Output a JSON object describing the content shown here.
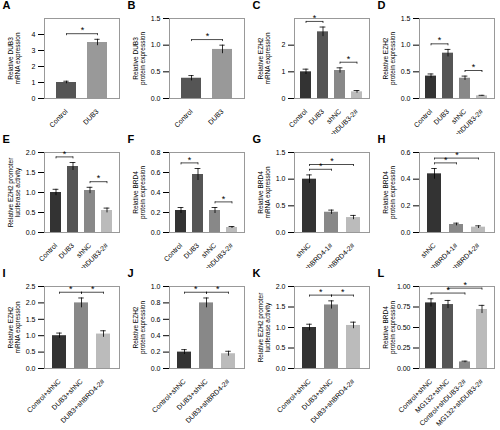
{
  "chart_data": [
    {
      "type": "bar",
      "title": "A",
      "ylabel": "Relative DUB3\nmRNA expression",
      "categories": [
        "Control",
        "DUB3"
      ],
      "values": [
        1.0,
        3.5
      ],
      "errors": [
        0.08,
        0.2
      ],
      "colors": [
        "#555555",
        "#999999"
      ],
      "ylim": [
        0,
        5
      ],
      "yticks": [
        0,
        1,
        2,
        3,
        4
      ],
      "annotations": [
        {
          "text": "*",
          "categories": [
            "Control",
            "DUB3"
          ]
        }
      ]
    },
    {
      "type": "bar",
      "title": "B",
      "ylabel": "Relative DUB3\nprotein expression",
      "categories": [
        "Control",
        "DUB3"
      ],
      "values": [
        0.38,
        0.92
      ],
      "errors": [
        0.05,
        0.08
      ],
      "colors": [
        "#555555",
        "#999999"
      ],
      "ylim": [
        0,
        1.5
      ],
      "yticks": [
        {
          "value": 0.0,
          "label": "0.0"
        },
        {
          "value": 0.5,
          "label": "0.5"
        },
        {
          "value": 1.0,
          "label": "1.0"
        },
        {
          "value": 1.5,
          "label": "1.5"
        }
      ],
      "annotations": [
        {
          "text": "*",
          "categories": [
            "Control",
            "DUB3"
          ]
        }
      ]
    },
    {
      "type": "bar",
      "title": "C",
      "ylabel": "Relative EZH2\nmRNA expression",
      "categories": [
        "Control",
        "DUB3",
        "shNC",
        "shDUB3-2#"
      ],
      "values": [
        1.0,
        2.5,
        1.05,
        0.25
      ],
      "errors": [
        0.1,
        0.18,
        0.1,
        0.05
      ],
      "colors": [
        "#333333",
        "#555555",
        "#888888",
        "#bbbbbb"
      ],
      "ylim": [
        0,
        3
      ],
      "yticks": [
        0,
        1,
        2
      ],
      "annotations": [
        {
          "text": "*",
          "categories": [
            "Control",
            "DUB3"
          ]
        },
        {
          "text": "*",
          "categories": [
            "shNC",
            "shDUB3-2#"
          ]
        }
      ]
    },
    {
      "type": "bar",
      "title": "D",
      "ylabel": "Relative EZH2\nprotein expression",
      "categories": [
        "Control",
        "DUB3",
        "shNC",
        "shDUB3-2#"
      ],
      "values": [
        0.42,
        0.85,
        0.38,
        0.05
      ],
      "errors": [
        0.04,
        0.07,
        0.04,
        0.01
      ],
      "colors": [
        "#333333",
        "#555555",
        "#888888",
        "#bbbbbb"
      ],
      "ylim": [
        0,
        1.5
      ],
      "yticks": [
        {
          "value": 0.0,
          "label": "0.0"
        },
        {
          "value": 0.5,
          "label": "0.5"
        },
        {
          "value": 1.0,
          "label": "1.0"
        },
        {
          "value": 1.5,
          "label": "1.5"
        }
      ],
      "annotations": [
        {
          "text": "*",
          "categories": [
            "Control",
            "DUB3"
          ]
        },
        {
          "text": "*",
          "categories": [
            "shNC",
            "shDUB3-2#"
          ]
        }
      ]
    },
    {
      "type": "bar",
      "title": "E",
      "ylabel": "Relative EZH2 promoter\nluciferase activity",
      "categories": [
        "Control",
        "DUB3",
        "shNC",
        "shDUB3-2#"
      ],
      "values": [
        1.0,
        1.65,
        1.05,
        0.55
      ],
      "errors": [
        0.08,
        0.1,
        0.08,
        0.06
      ],
      "colors": [
        "#333333",
        "#555555",
        "#888888",
        "#bbbbbb"
      ],
      "ylim": [
        0,
        2.0
      ],
      "yticks": [
        {
          "value": 0.0,
          "label": "0.0"
        },
        {
          "value": 0.5,
          "label": "0.5"
        },
        {
          "value": 1.0,
          "label": "1.0"
        },
        {
          "value": 1.5,
          "label": "1.5"
        },
        {
          "value": 2.0,
          "label": "2.0"
        }
      ],
      "annotations": [
        {
          "text": "*",
          "categories": [
            "Control",
            "DUB3"
          ]
        },
        {
          "text": "*",
          "categories": [
            "shNC",
            "shDUB3-2#"
          ]
        }
      ]
    },
    {
      "type": "bar",
      "title": "F",
      "ylabel": "Relative BRD4\nprotein expression",
      "categories": [
        "Control",
        "DUB3",
        "shNC",
        "shDUB3-2#"
      ],
      "values": [
        0.22,
        0.58,
        0.22,
        0.05
      ],
      "errors": [
        0.03,
        0.06,
        0.03,
        0.01
      ],
      "colors": [
        "#333333",
        "#555555",
        "#888888",
        "#bbbbbb"
      ],
      "ylim": [
        0,
        0.8
      ],
      "yticks": [
        {
          "value": 0.0,
          "label": "0.0"
        },
        {
          "value": 0.2,
          "label": "0.2"
        },
        {
          "value": 0.4,
          "label": "0.4"
        },
        {
          "value": 0.6,
          "label": "0.6"
        },
        {
          "value": 0.8,
          "label": "0.8"
        }
      ],
      "annotations": [
        {
          "text": "*",
          "categories": [
            "Control",
            "DUB3"
          ]
        },
        {
          "text": "*",
          "categories": [
            "shNC",
            "shDUB3-2#"
          ]
        }
      ]
    },
    {
      "type": "bar",
      "title": "G",
      "ylabel": "Relative BRD4\nmRNA expression",
      "categories": [
        "shNC",
        "shBRD4-1#",
        "shBRD4-2#"
      ],
      "values": [
        1.0,
        0.38,
        0.28
      ],
      "errors": [
        0.08,
        0.04,
        0.04
      ],
      "colors": [
        "#333333",
        "#888888",
        "#bbbbbb"
      ],
      "ylim": [
        0,
        1.5
      ],
      "yticks": [
        {
          "value": 0.0,
          "label": "0.0"
        },
        {
          "value": 0.5,
          "label": "0.5"
        },
        {
          "value": 1.0,
          "label": "1.0"
        },
        {
          "value": 1.5,
          "label": "1.5"
        }
      ],
      "annotations": [
        {
          "text": "*",
          "categories": [
            "shNC",
            "shBRD4-1#"
          ]
        },
        {
          "text": "*",
          "categories": [
            "shNC",
            "shBRD4-2#"
          ]
        }
      ]
    },
    {
      "type": "bar",
      "title": "H",
      "ylabel": "Relative BRD4\nprotein expression",
      "categories": [
        "shNC",
        "shBRD4-1#",
        "shBRD4-2#"
      ],
      "values": [
        0.44,
        0.06,
        0.04
      ],
      "errors": [
        0.04,
        0.01,
        0.01
      ],
      "colors": [
        "#333333",
        "#888888",
        "#bbbbbb"
      ],
      "ylim": [
        0,
        0.6
      ],
      "yticks": [
        {
          "value": 0.0,
          "label": "0.0"
        },
        {
          "value": 0.2,
          "label": "0.2"
        },
        {
          "value": 0.4,
          "label": "0.4"
        },
        {
          "value": 0.6,
          "label": "0.6"
        }
      ],
      "annotations": [
        {
          "text": "*",
          "categories": [
            "shNC",
            "shBRD4-1#"
          ]
        },
        {
          "text": "*",
          "categories": [
            "shNC",
            "shBRD4-2#"
          ]
        }
      ]
    },
    {
      "type": "bar",
      "title": "I",
      "ylabel": "Relative EZH2\nmRNA expression",
      "categories": [
        "Control+shNC",
        "DUB3+shNC",
        "DUB3+shBRD4-2#"
      ],
      "values": [
        1.0,
        2.0,
        1.05
      ],
      "errors": [
        0.08,
        0.15,
        0.1
      ],
      "colors": [
        "#333333",
        "#888888",
        "#bbbbbb"
      ],
      "ylim": [
        0,
        2.5
      ],
      "yticks": [
        {
          "value": 0.0,
          "label": "0.0"
        },
        {
          "value": 0.5,
          "label": "0.5"
        },
        {
          "value": 1.0,
          "label": "1.0"
        },
        {
          "value": 1.5,
          "label": "1.5"
        },
        {
          "value": 2.0,
          "label": "2.0"
        },
        {
          "value": 2.5,
          "label": "2.5"
        }
      ],
      "annotations": [
        {
          "text": "*",
          "categories": [
            "Control+shNC",
            "DUB3+shNC"
          ]
        },
        {
          "text": "*",
          "categories": [
            "DUB3+shNC",
            "DUB3+shBRD4-2#"
          ]
        }
      ]
    },
    {
      "type": "bar",
      "title": "J",
      "ylabel": "Relative EZH2\nprotein expression",
      "categories": [
        "Control+shNC",
        "DUB3+shNC",
        "DUB3+shBRD4-2#"
      ],
      "values": [
        0.2,
        0.8,
        0.18
      ],
      "errors": [
        0.03,
        0.06,
        0.03
      ],
      "colors": [
        "#333333",
        "#888888",
        "#bbbbbb"
      ],
      "ylim": [
        0,
        1.0
      ],
      "yticks": [
        {
          "value": 0.0,
          "label": "0.0"
        },
        {
          "value": 0.2,
          "label": "0.2"
        },
        {
          "value": 0.4,
          "label": "0.4"
        },
        {
          "value": 0.6,
          "label": "0.6"
        },
        {
          "value": 0.8,
          "label": "0.8"
        },
        {
          "value": 1.0,
          "label": "1.0"
        }
      ],
      "annotations": [
        {
          "text": "*",
          "categories": [
            "Control+shNC",
            "DUB3+shNC"
          ]
        },
        {
          "text": "*",
          "categories": [
            "DUB3+shNC",
            "DUB3+shBRD4-2#"
          ]
        }
      ]
    },
    {
      "type": "bar",
      "title": "K",
      "ylabel": "Relative EZH2 promoter\nluciferase activity",
      "categories": [
        "Control+shNC",
        "DUB3+shNC",
        "DUB3+shBRD4-2#"
      ],
      "values": [
        1.0,
        1.55,
        1.05
      ],
      "errors": [
        0.08,
        0.1,
        0.08
      ],
      "colors": [
        "#333333",
        "#888888",
        "#bbbbbb"
      ],
      "ylim": [
        0,
        2.0
      ],
      "yticks": [
        {
          "value": 0.0,
          "label": "0.0"
        },
        {
          "value": 0.5,
          "label": "0.5"
        },
        {
          "value": 1.0,
          "label": "1.0"
        },
        {
          "value": 1.5,
          "label": "1.5"
        },
        {
          "value": 2.0,
          "label": "2.0"
        }
      ],
      "annotations": [
        {
          "text": "*",
          "categories": [
            "Control+shNC",
            "DUB3+shNC"
          ]
        },
        {
          "text": "*",
          "categories": [
            "DUB3+shNC",
            "DUB3+shBRD4-2#"
          ]
        }
      ]
    },
    {
      "type": "bar",
      "title": "L",
      "ylabel": "Relative BRD4\nprotein expression",
      "categories": [
        "Control+shNC",
        "MG132+shNC",
        "Control+shDUB3-2#",
        "MG132+shDUB3-2#"
      ],
      "values": [
        0.8,
        0.78,
        0.08,
        0.72
      ],
      "errors": [
        0.05,
        0.05,
        0.01,
        0.05
      ],
      "colors": [
        "#333333",
        "#555555",
        "#888888",
        "#bbbbbb"
      ],
      "ylim": [
        0,
        1.0
      ],
      "yticks": [
        {
          "value": 0.0,
          "label": "0.00"
        },
        {
          "value": 0.25,
          "label": "0.25"
        },
        {
          "value": 0.5,
          "label": "0.50"
        },
        {
          "value": 0.75,
          "label": "0.75"
        },
        {
          "value": 1.0,
          "label": "1.00"
        }
      ],
      "annotations": [
        {
          "text": "*",
          "categories": [
            "Control+shNC",
            "Control+shDUB3-2#"
          ]
        },
        {
          "text": "*",
          "categories": [
            "MG132+shNC",
            "MG132+shDUB3-2#"
          ]
        }
      ]
    }
  ]
}
